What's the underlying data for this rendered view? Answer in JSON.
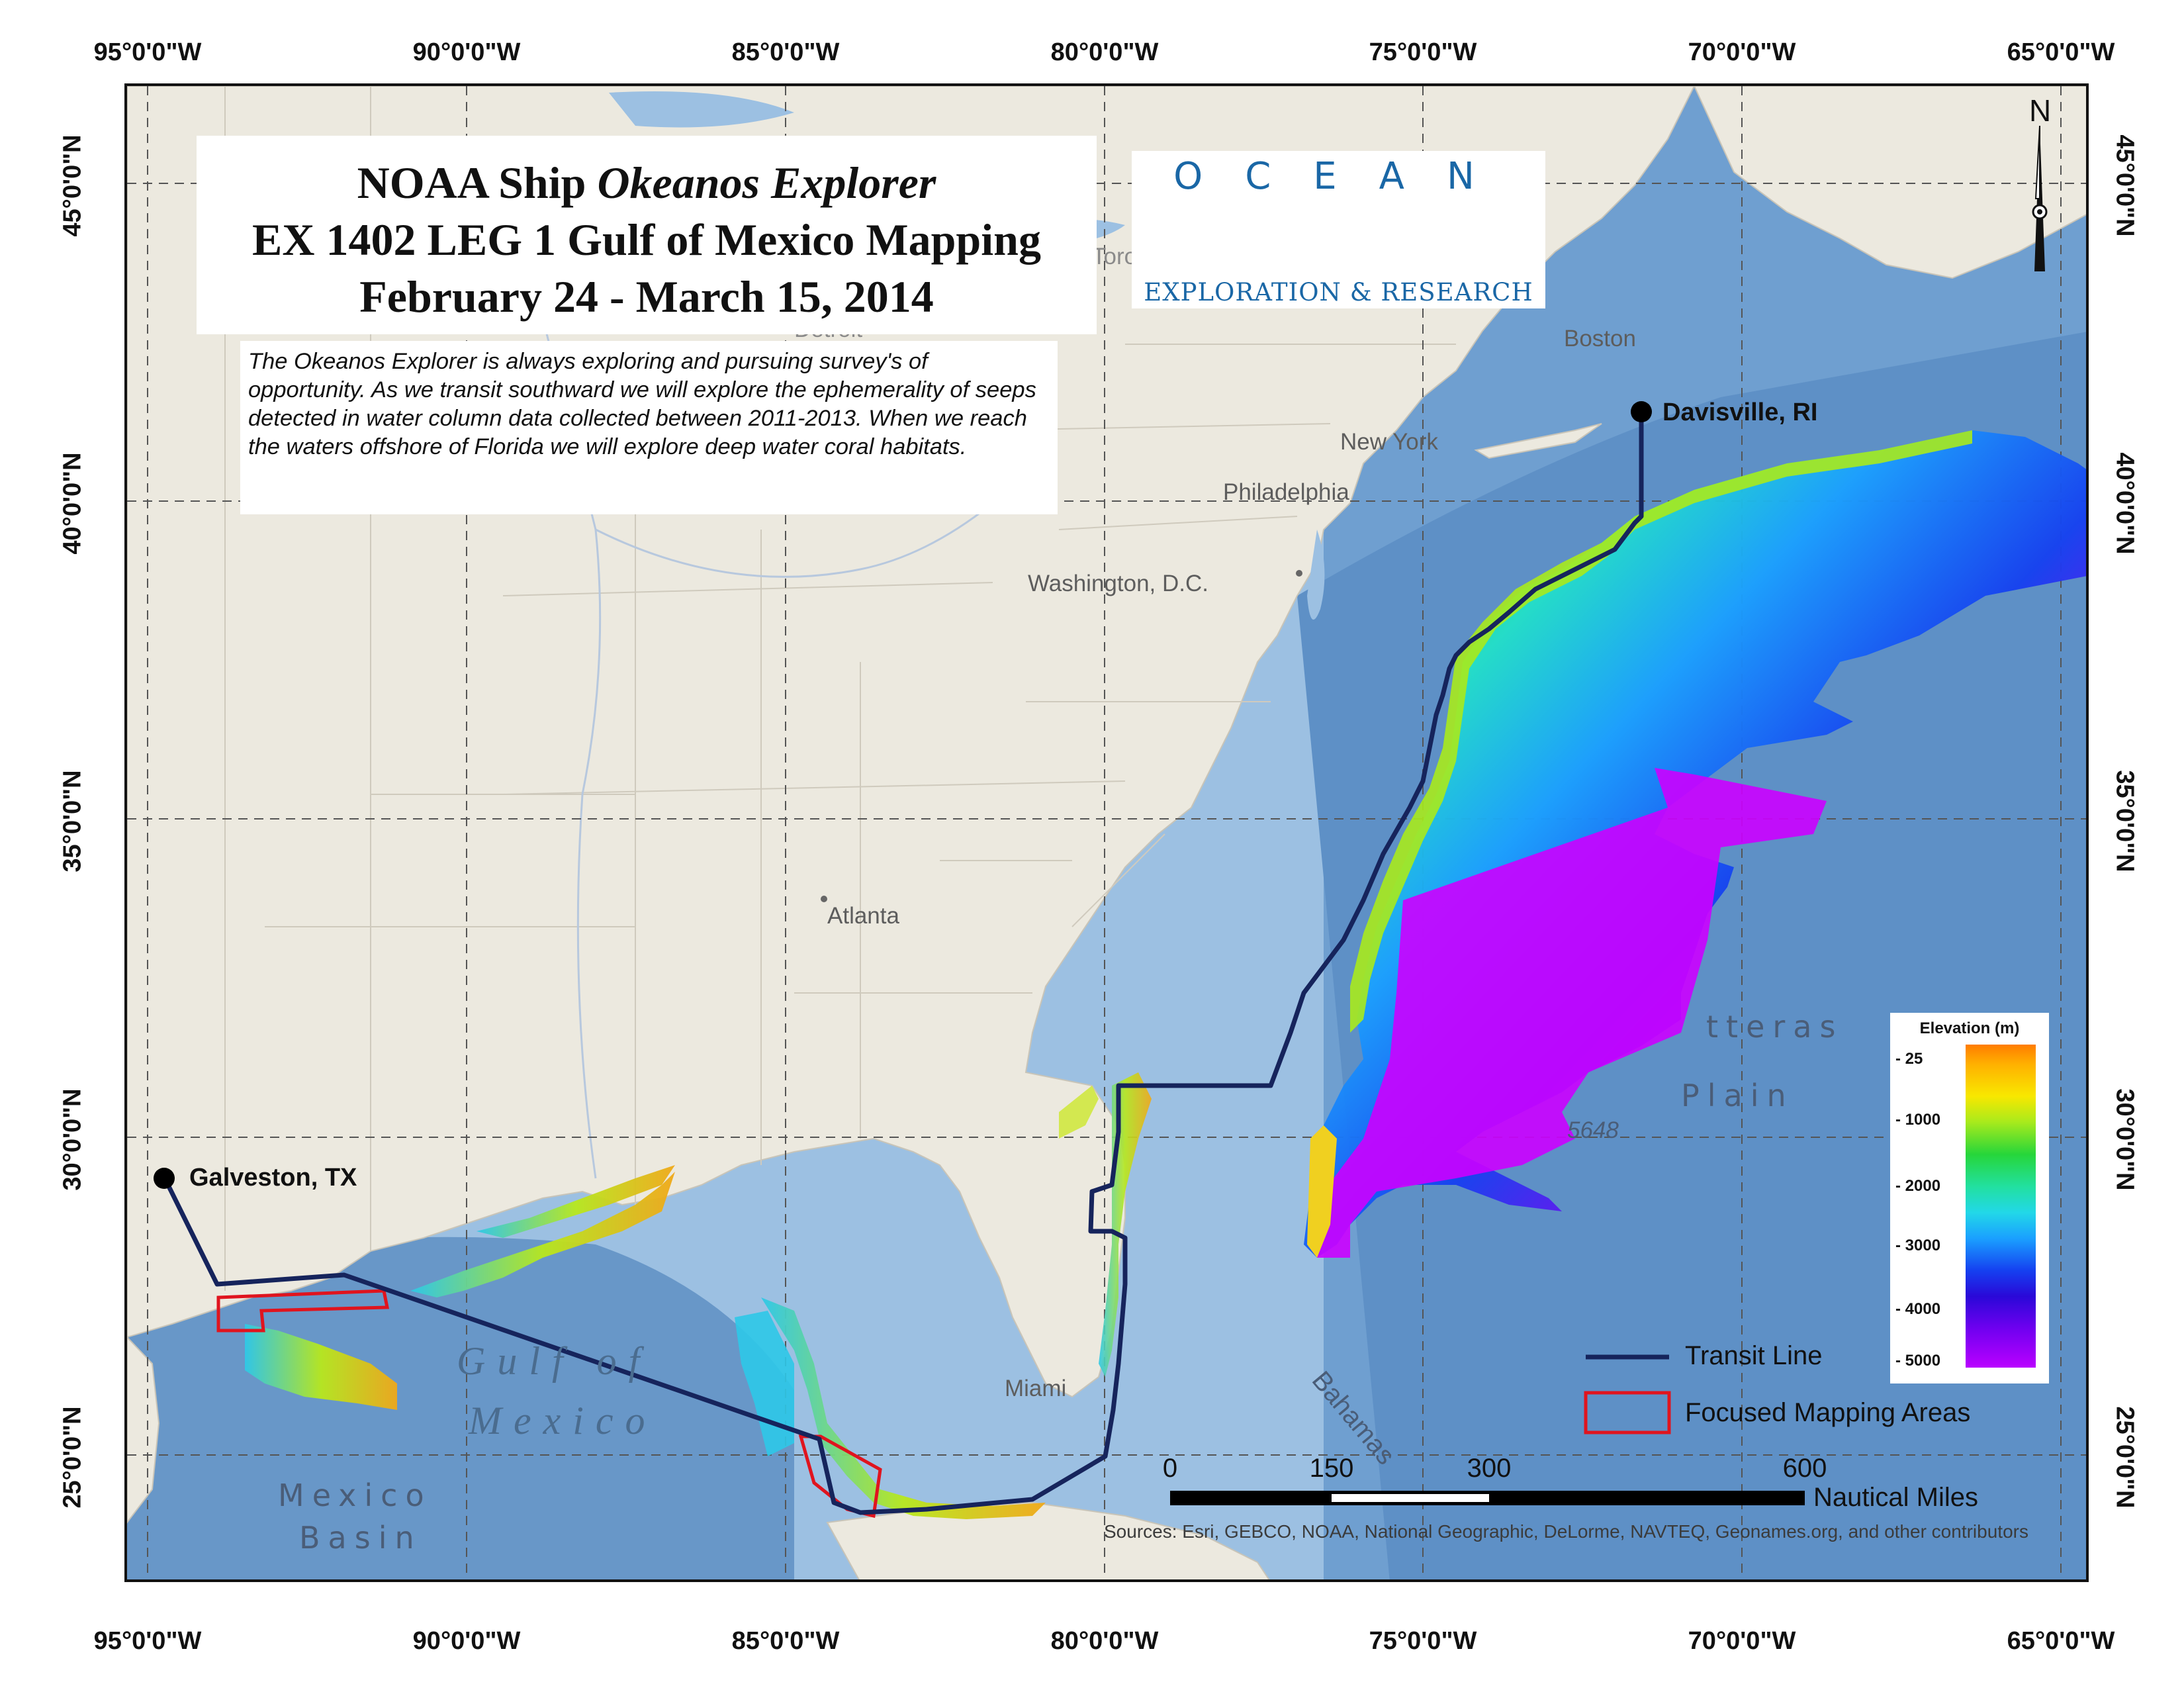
{
  "title": {
    "line1_prefix": "NOAA Ship ",
    "line1_italic": "Okeanos Explorer",
    "line2": "EX 1402 LEG 1 Gulf of Mexico Mapping",
    "line3": "February 24 - March 15, 2014"
  },
  "description": "The Okeanos Explorer is always exploring and pursuing survey's of opportunity. As we transit southward we will explore the ephemerality of seeps detected in water column data collected between 2011-2013. When we reach the waters offshore of Florida we will explore deep water coral habitats.",
  "logo": {
    "word": "OCEAN",
    "subtitle": "EXPLORATION & RESEARCH"
  },
  "longitude_labels": [
    "95°0'0\"W",
    "90°0'0\"W",
    "85°0'0\"W",
    "80°0'0\"W",
    "75°0'0\"W",
    "70°0'0\"W",
    "65°0'0\"W"
  ],
  "latitude_labels": [
    "45°0'0\"N",
    "40°0'0\"N",
    "35°0'0\"N",
    "30°0'0\"N",
    "25°0'0\"N"
  ],
  "places": {
    "boston": "Boston",
    "new_york": "New York",
    "philadelphia": "Philadelphia",
    "washington": "Washington, D.C.",
    "atlanta": "Atlanta",
    "miami": "Miami",
    "detroit": "Detroit",
    "toronto": "Toronto",
    "gulf_line1": "Gulf of",
    "gulf_line2": "Mexico",
    "mexico_basin_1": "Mexico",
    "mexico_basin_2": "Basin",
    "hatteras_1": "tteras",
    "hatteras_2": "Plain",
    "bahamas": "Bahamas",
    "depth_5648": "5648"
  },
  "ports": [
    {
      "name": "Davisville, RI",
      "lon": -71.4,
      "lat": 41.6
    },
    {
      "name": "Galveston, TX",
      "lon": -94.8,
      "lat": 29.3
    }
  ],
  "elevation_legend": {
    "title": "Elevation (m)",
    "ticks": [
      "- 25",
      "- 1000",
      "- 2000",
      "- 3000",
      "- 4000",
      "- 5000"
    ]
  },
  "legend": {
    "transit_line": "Transit Line",
    "focused_areas": "Focused Mapping Areas"
  },
  "scale_bar": {
    "ticks": [
      "0",
      "150",
      "300",
      "600"
    ],
    "unit": "Nautical Miles"
  },
  "north_arrow": "N",
  "sources": "Sources: Esri, GEBCO, NOAA, National Geographic, DeLorme, NAVTEQ, Geonames.org, and other contributors",
  "colors": {
    "transit_line": "#16245c",
    "focused_area": "#e0141e",
    "ocean": "#9cc0e2",
    "land": "#ece9df"
  }
}
